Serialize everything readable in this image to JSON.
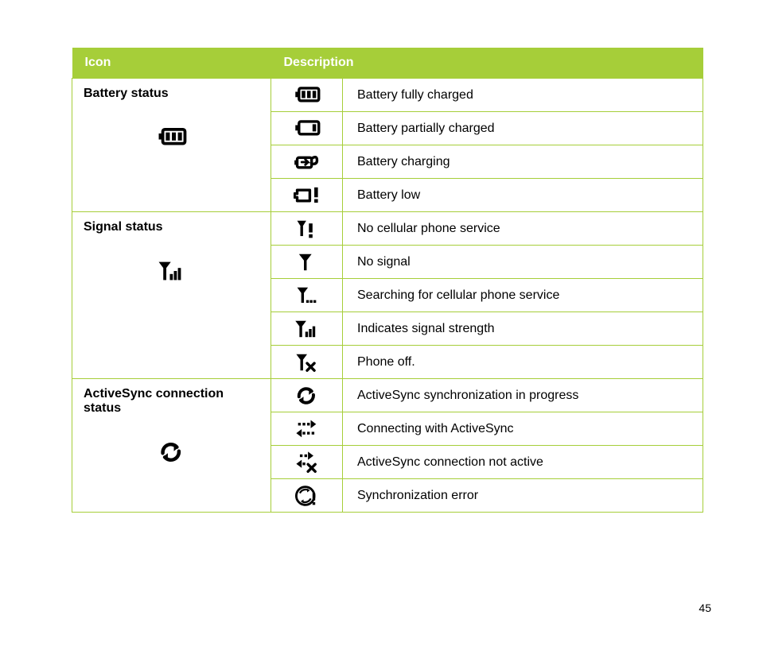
{
  "header": {
    "icon": "Icon",
    "description": "Description"
  },
  "page_number": "45",
  "colors": {
    "header_bg": "#a6ce39",
    "border": "#a6ce39",
    "header_text": "#ffffff",
    "text": "#000000"
  },
  "groups": [
    {
      "title": "Battery status",
      "group_icon": "battery-full-icon",
      "rows": [
        {
          "icon": "battery-full-icon",
          "desc": "Battery fully charged"
        },
        {
          "icon": "battery-partial-icon",
          "desc": "Battery partially charged"
        },
        {
          "icon": "battery-charging-icon",
          "desc": "Battery charging"
        },
        {
          "icon": "battery-low-icon",
          "desc": "Battery low"
        }
      ]
    },
    {
      "title": "Signal status",
      "group_icon": "signal-strength-icon",
      "rows": [
        {
          "icon": "no-service-icon",
          "desc": "No cellular phone service"
        },
        {
          "icon": "no-signal-icon",
          "desc": "No signal"
        },
        {
          "icon": "searching-service-icon",
          "desc": "Searching for cellular phone service"
        },
        {
          "icon": "signal-strength-icon",
          "desc": "Indicates signal strength"
        },
        {
          "icon": "phone-off-icon",
          "desc": "Phone off."
        }
      ]
    },
    {
      "title": "ActiveSync connection status",
      "group_icon": "sync-progress-icon",
      "rows": [
        {
          "icon": "sync-progress-icon",
          "desc": "ActiveSync synchronization in progress"
        },
        {
          "icon": "sync-connecting-icon",
          "desc": "Connecting with ActiveSync"
        },
        {
          "icon": "sync-inactive-icon",
          "desc": "ActiveSync connection not active"
        },
        {
          "icon": "sync-error-icon",
          "desc": "Synchronization error"
        }
      ]
    }
  ]
}
